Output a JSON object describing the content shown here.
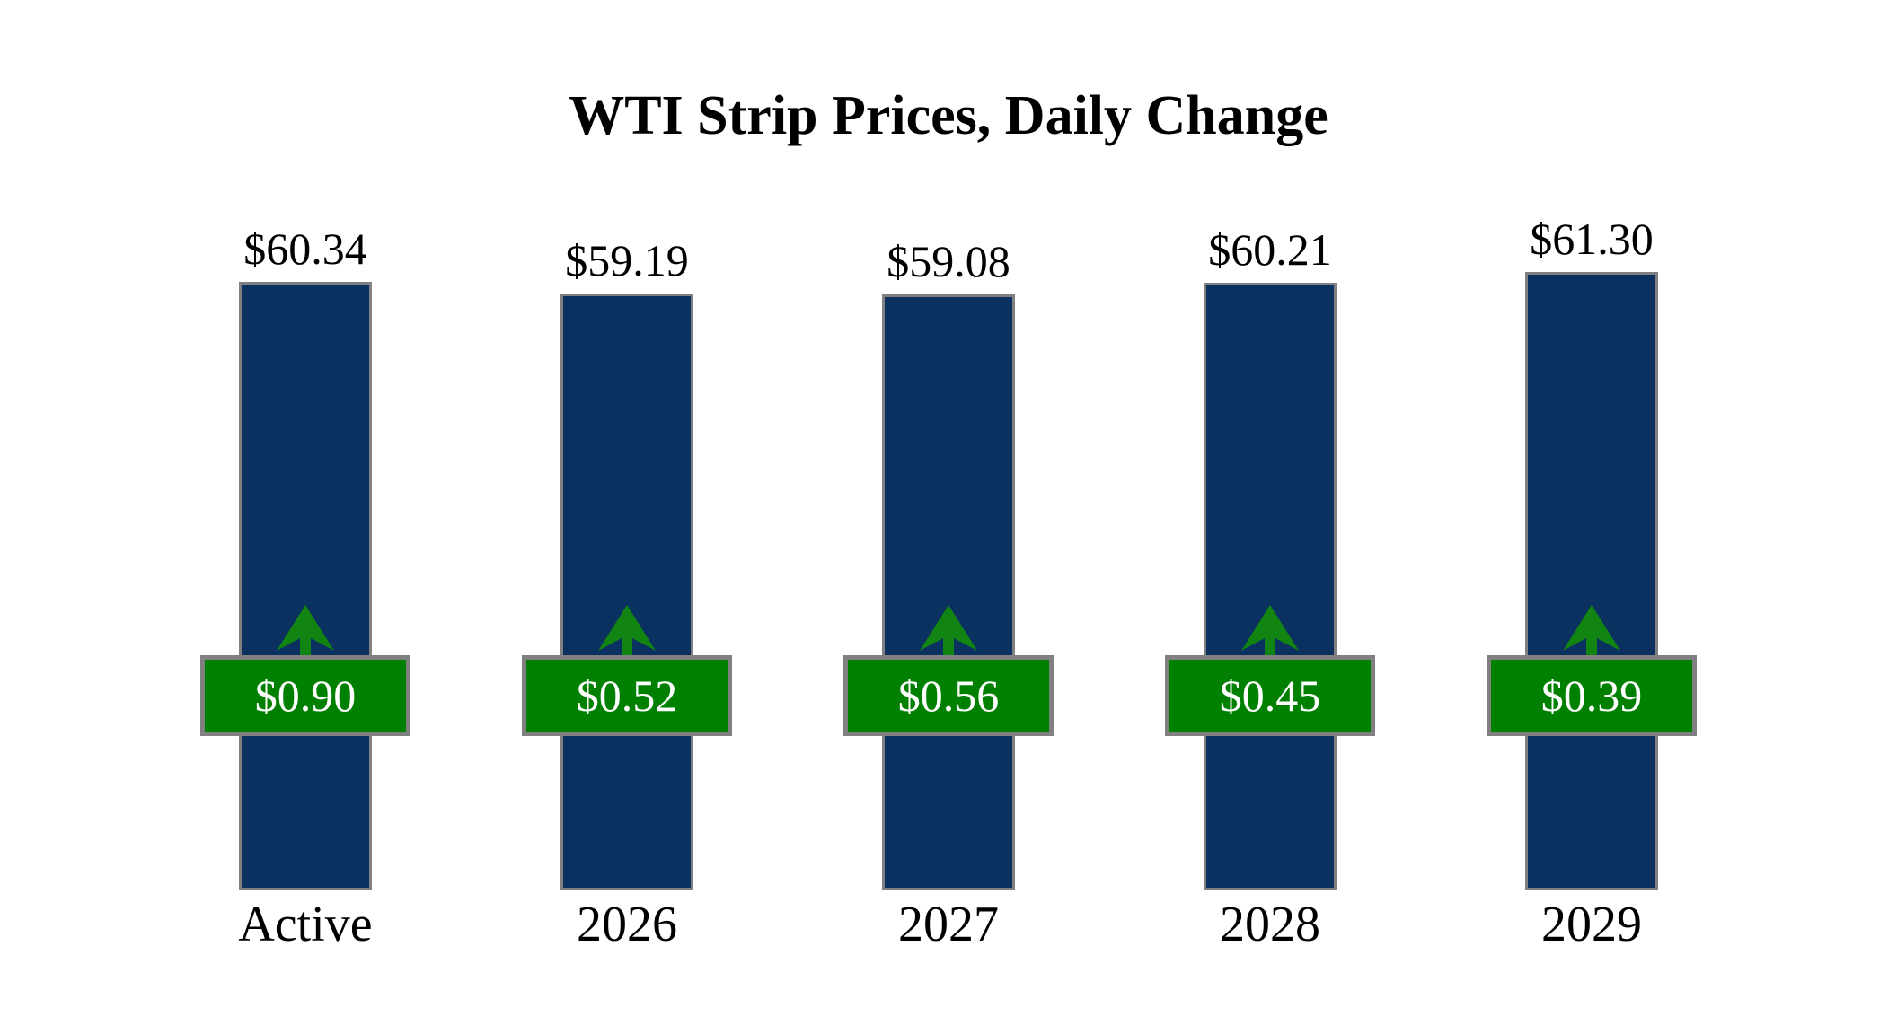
{
  "title": "WTI Strip Prices, Daily Change",
  "chart_data": {
    "type": "bar",
    "categories": [
      "Active",
      "2026",
      "2027",
      "2028",
      "2029"
    ],
    "series": [
      {
        "name": "WTI strip price",
        "values": [
          60.34,
          59.19,
          59.08,
          60.21,
          61.3
        ]
      },
      {
        "name": "Daily change",
        "values": [
          0.9,
          0.52,
          0.56,
          0.45,
          0.39
        ]
      }
    ],
    "price_labels": [
      "$60.34",
      "$59.19",
      "$59.08",
      "$60.21",
      "$61.30"
    ],
    "change_labels": [
      "$0.90",
      "$0.52",
      "$0.56",
      "$0.45",
      "$0.39"
    ],
    "change_direction": "up",
    "title": "WTI Strip Prices, Daily Change",
    "xlabel": "",
    "ylabel": "",
    "ylim": [
      0,
      61.3
    ],
    "grid": false,
    "legend": false,
    "colors": {
      "bar_fill": "#0a3160",
      "bar_border": "#808080",
      "badge_fill": "#008000",
      "badge_border": "#808080",
      "badge_text": "#ffffff",
      "arrow": "#128412",
      "text": "#000000",
      "background": "#ffffff"
    }
  }
}
